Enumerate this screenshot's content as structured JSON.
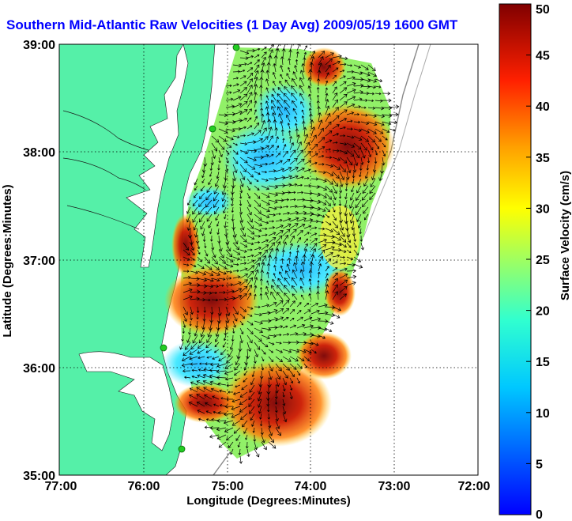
{
  "title": "Southern Mid-Atlantic Raw Velocities (1 Day Avg) 2009/05/19 1600 GMT",
  "axes": {
    "xlabel": "Longitude (Degrees:Minutes)",
    "ylabel": "Latitude (Degrees:Minutes)",
    "x_ticks": [
      "77:00",
      "76:00",
      "75:00",
      "74:00",
      "73:00",
      "72:00"
    ],
    "y_ticks": [
      "39:00",
      "38:00",
      "37:00",
      "36:00",
      "35:00"
    ],
    "grid": "dotted"
  },
  "colorbar": {
    "label": "Surface Velocity (cm/s)",
    "ticks": [
      "50",
      "45",
      "40",
      "35",
      "30",
      "25",
      "20",
      "15",
      "10",
      "5",
      "0"
    ],
    "range": [
      0,
      50
    ],
    "colormap": "jet"
  },
  "colors": {
    "land": "#55f0a8",
    "title": "#0000ff",
    "stations": "#22cc22"
  }
}
